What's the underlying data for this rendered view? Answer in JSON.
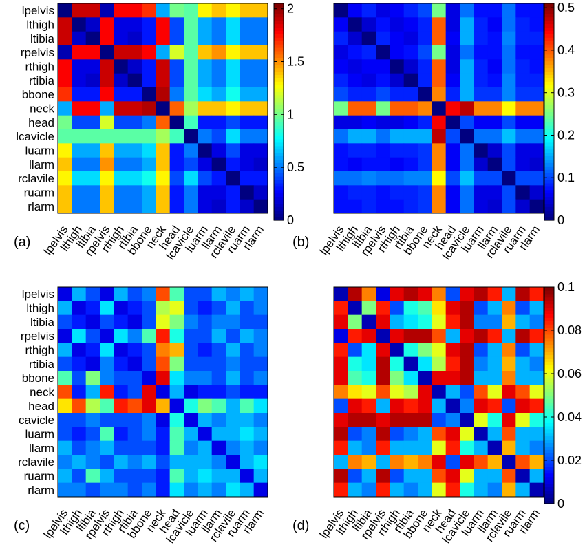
{
  "colormap": "jet",
  "chart_data": [
    {
      "type": "heatmap",
      "panel_label": "(a)",
      "row_labels": [
        "lpelvis",
        "lthigh",
        "ltibia",
        "rpelvis",
        "rthigh",
        "rtibia",
        "bbone",
        "neck",
        "head",
        "lcavicle",
        "luarm",
        "llarm",
        "rclavile",
        "ruarm",
        "rlarm"
      ],
      "col_labels": [
        "lpelvis",
        "lthigh",
        "ltibia",
        "rpelvis",
        "rthigh",
        "rtibia",
        "bbone",
        "neck",
        "head",
        "lcavicle",
        "luarm",
        "llarm",
        "rclavile",
        "ruarm",
        "rlarm"
      ],
      "colorbar": {
        "min": 0,
        "max": 2.05,
        "ticks": [
          0,
          0.5,
          1,
          1.5,
          2
        ],
        "tick_labels": [
          "0",
          "0.5",
          "1",
          "1.5",
          "2"
        ]
      },
      "values": [
        [
          0.0,
          1.9,
          1.9,
          0.1,
          1.8,
          1.8,
          1.7,
          0.6,
          1.0,
          0.95,
          1.3,
          1.4,
          1.3,
          1.4,
          1.4
        ],
        [
          1.9,
          0.0,
          0.15,
          1.8,
          0.2,
          0.2,
          0.3,
          1.8,
          0.4,
          0.95,
          0.6,
          0.5,
          0.7,
          0.5,
          0.5
        ],
        [
          1.9,
          0.15,
          0.0,
          1.8,
          0.2,
          0.15,
          0.3,
          1.8,
          0.4,
          0.95,
          0.6,
          0.5,
          0.7,
          0.5,
          0.5
        ],
        [
          0.1,
          1.8,
          1.8,
          0.0,
          1.9,
          1.9,
          1.8,
          0.6,
          1.2,
          0.95,
          1.4,
          1.5,
          1.3,
          1.4,
          1.4
        ],
        [
          1.8,
          0.2,
          0.2,
          1.9,
          0.0,
          0.15,
          0.3,
          1.9,
          0.4,
          0.95,
          0.6,
          0.5,
          0.7,
          0.5,
          0.5
        ],
        [
          1.8,
          0.2,
          0.15,
          1.9,
          0.15,
          0.0,
          0.3,
          1.9,
          0.4,
          0.95,
          0.6,
          0.5,
          0.7,
          0.5,
          0.5
        ],
        [
          1.7,
          0.3,
          0.3,
          1.8,
          0.3,
          0.3,
          0.0,
          1.95,
          0.5,
          0.95,
          0.7,
          0.6,
          0.8,
          0.6,
          0.6
        ],
        [
          0.6,
          1.8,
          1.8,
          0.6,
          1.9,
          1.9,
          1.95,
          0.0,
          1.6,
          1.1,
          1.4,
          1.4,
          1.3,
          1.4,
          1.4
        ],
        [
          1.0,
          0.4,
          0.4,
          1.2,
          0.4,
          0.4,
          0.5,
          1.6,
          0.0,
          0.9,
          0.3,
          0.3,
          0.4,
          0.3,
          0.3
        ],
        [
          0.95,
          0.95,
          0.95,
          0.95,
          0.95,
          0.95,
          0.95,
          1.1,
          0.9,
          0.0,
          0.5,
          0.4,
          0.7,
          0.5,
          0.5
        ],
        [
          1.3,
          0.6,
          0.6,
          1.4,
          0.6,
          0.6,
          0.7,
          1.4,
          0.3,
          0.5,
          0.0,
          0.2,
          0.4,
          0.2,
          0.2
        ],
        [
          1.4,
          0.5,
          0.5,
          1.5,
          0.5,
          0.5,
          0.6,
          1.4,
          0.3,
          0.4,
          0.2,
          0.0,
          0.3,
          0.2,
          0.15
        ],
        [
          1.3,
          0.7,
          0.7,
          1.3,
          0.7,
          0.7,
          0.8,
          1.3,
          0.4,
          0.7,
          0.4,
          0.3,
          0.0,
          0.3,
          0.3
        ],
        [
          1.4,
          0.5,
          0.5,
          1.4,
          0.5,
          0.5,
          0.6,
          1.4,
          0.3,
          0.5,
          0.2,
          0.2,
          0.3,
          0.0,
          0.15
        ],
        [
          1.4,
          0.5,
          0.5,
          1.4,
          0.5,
          0.5,
          0.6,
          1.4,
          0.3,
          0.5,
          0.2,
          0.15,
          0.3,
          0.15,
          0.0
        ]
      ]
    },
    {
      "type": "heatmap",
      "panel_label": "(b)",
      "row_labels": [],
      "col_labels": [
        "lpelvis",
        "lthigh",
        "ltibia",
        "rpelvis",
        "rthigh",
        "rtibia",
        "bbone",
        "neck",
        "head",
        "lcavicle",
        "luarm",
        "llarm",
        "rclavile",
        "ruarm",
        "rlarm"
      ],
      "colorbar": {
        "min": 0,
        "max": 0.51,
        "ticks": [
          0,
          0.1,
          0.2,
          0.3,
          0.4,
          0.5
        ],
        "tick_labels": [
          "0",
          "0.1",
          "0.2",
          "0.3",
          "0.4",
          "0.5"
        ]
      },
      "values": [
        [
          0.0,
          0.06,
          0.08,
          0.05,
          0.06,
          0.08,
          0.1,
          0.25,
          0.05,
          0.12,
          0.07,
          0.07,
          0.12,
          0.07,
          0.07
        ],
        [
          0.06,
          0.0,
          0.04,
          0.07,
          0.05,
          0.06,
          0.08,
          0.4,
          0.05,
          0.15,
          0.08,
          0.06,
          0.12,
          0.08,
          0.07
        ],
        [
          0.08,
          0.04,
          0.0,
          0.08,
          0.06,
          0.05,
          0.08,
          0.4,
          0.06,
          0.15,
          0.08,
          0.07,
          0.13,
          0.08,
          0.08
        ],
        [
          0.05,
          0.07,
          0.08,
          0.0,
          0.06,
          0.07,
          0.1,
          0.25,
          0.05,
          0.12,
          0.07,
          0.07,
          0.12,
          0.07,
          0.07
        ],
        [
          0.06,
          0.05,
          0.06,
          0.06,
          0.0,
          0.04,
          0.08,
          0.4,
          0.05,
          0.15,
          0.08,
          0.06,
          0.12,
          0.08,
          0.07
        ],
        [
          0.08,
          0.06,
          0.05,
          0.07,
          0.04,
          0.0,
          0.08,
          0.4,
          0.06,
          0.15,
          0.08,
          0.07,
          0.13,
          0.08,
          0.08
        ],
        [
          0.1,
          0.08,
          0.08,
          0.1,
          0.08,
          0.08,
          0.0,
          0.38,
          0.08,
          0.15,
          0.09,
          0.09,
          0.13,
          0.09,
          0.09
        ],
        [
          0.25,
          0.4,
          0.4,
          0.25,
          0.4,
          0.4,
          0.38,
          0.0,
          0.45,
          0.48,
          0.38,
          0.38,
          0.32,
          0.38,
          0.38
        ],
        [
          0.05,
          0.05,
          0.06,
          0.05,
          0.05,
          0.06,
          0.08,
          0.45,
          0.0,
          0.1,
          0.06,
          0.06,
          0.1,
          0.06,
          0.06
        ],
        [
          0.12,
          0.15,
          0.15,
          0.12,
          0.15,
          0.15,
          0.15,
          0.48,
          0.1,
          0.0,
          0.12,
          0.12,
          0.16,
          0.12,
          0.12
        ],
        [
          0.07,
          0.08,
          0.08,
          0.07,
          0.08,
          0.08,
          0.09,
          0.38,
          0.06,
          0.12,
          0.0,
          0.04,
          0.1,
          0.05,
          0.05
        ],
        [
          0.07,
          0.06,
          0.07,
          0.07,
          0.06,
          0.07,
          0.09,
          0.38,
          0.06,
          0.12,
          0.04,
          0.0,
          0.1,
          0.05,
          0.04
        ],
        [
          0.12,
          0.12,
          0.13,
          0.12,
          0.12,
          0.13,
          0.13,
          0.32,
          0.1,
          0.16,
          0.1,
          0.1,
          0.0,
          0.1,
          0.1
        ],
        [
          0.07,
          0.08,
          0.08,
          0.07,
          0.08,
          0.08,
          0.09,
          0.38,
          0.06,
          0.12,
          0.05,
          0.05,
          0.1,
          0.0,
          0.04
        ],
        [
          0.07,
          0.07,
          0.08,
          0.07,
          0.07,
          0.08,
          0.09,
          0.38,
          0.06,
          0.12,
          0.05,
          0.04,
          0.1,
          0.04,
          0.0
        ]
      ]
    },
    {
      "type": "heatmap",
      "panel_label": "(c)",
      "row_labels": [
        "lpelvis",
        "lthigh",
        "ltibia",
        "rpelvis",
        "rthigh",
        "rtibia",
        "bbone",
        "neck",
        "head",
        "cavicle",
        "luarm",
        "llarm",
        "rclavile",
        "ruarm",
        "rlarm"
      ],
      "col_labels": [
        "lpelvis",
        "lthigh",
        "ltibia",
        "rpelvis",
        "rthigh",
        "rtibia",
        "bbone",
        "neck",
        "head",
        "lcavicle",
        "luarm",
        "llarm",
        "rclavile",
        "ruarm",
        "rlarm"
      ],
      "colorbar": null,
      "value_range": [
        0,
        1
      ],
      "values": [
        [
          0.1,
          0.3,
          0.2,
          0.1,
          0.3,
          0.2,
          0.25,
          0.8,
          0.45,
          0.2,
          0.2,
          0.3,
          0.25,
          0.3,
          0.25
        ],
        [
          0.3,
          0.1,
          0.15,
          0.35,
          0.1,
          0.15,
          0.2,
          0.55,
          0.6,
          0.2,
          0.15,
          0.2,
          0.3,
          0.2,
          0.25
        ],
        [
          0.2,
          0.15,
          0.1,
          0.2,
          0.15,
          0.1,
          0.2,
          0.6,
          0.5,
          0.25,
          0.2,
          0.25,
          0.25,
          0.2,
          0.2
        ],
        [
          0.1,
          0.35,
          0.2,
          0.1,
          0.35,
          0.25,
          0.45,
          0.85,
          0.4,
          0.2,
          0.2,
          0.3,
          0.2,
          0.3,
          0.25
        ],
        [
          0.3,
          0.1,
          0.15,
          0.35,
          0.1,
          0.15,
          0.2,
          0.75,
          0.7,
          0.2,
          0.15,
          0.2,
          0.3,
          0.2,
          0.25
        ],
        [
          0.2,
          0.15,
          0.1,
          0.25,
          0.15,
          0.1,
          0.2,
          0.8,
          0.5,
          0.2,
          0.2,
          0.2,
          0.25,
          0.2,
          0.2
        ],
        [
          0.45,
          0.2,
          0.5,
          0.25,
          0.2,
          0.2,
          0.1,
          0.9,
          0.35,
          0.25,
          0.25,
          0.2,
          0.3,
          0.2,
          0.25
        ],
        [
          0.8,
          0.15,
          0.3,
          0.85,
          0.15,
          0.2,
          0.9,
          0.1,
          0.3,
          0.1,
          0.15,
          0.15,
          0.2,
          0.15,
          0.15
        ],
        [
          0.65,
          0.8,
          0.55,
          0.45,
          0.85,
          0.8,
          0.9,
          0.7,
          0.1,
          0.4,
          0.5,
          0.45,
          0.3,
          0.45,
          0.35
        ],
        [
          0.2,
          0.2,
          0.25,
          0.2,
          0.2,
          0.2,
          0.25,
          0.1,
          0.4,
          0.1,
          0.3,
          0.25,
          0.3,
          0.3,
          0.25
        ],
        [
          0.2,
          0.15,
          0.2,
          0.45,
          0.15,
          0.2,
          0.25,
          0.15,
          0.45,
          0.3,
          0.1,
          0.3,
          0.3,
          0.35,
          0.3
        ],
        [
          0.3,
          0.2,
          0.25,
          0.3,
          0.2,
          0.2,
          0.2,
          0.15,
          0.45,
          0.25,
          0.3,
          0.1,
          0.25,
          0.3,
          0.25
        ],
        [
          0.25,
          0.3,
          0.25,
          0.2,
          0.3,
          0.25,
          0.3,
          0.2,
          0.3,
          0.3,
          0.3,
          0.25,
          0.1,
          0.3,
          0.35
        ],
        [
          0.3,
          0.2,
          0.45,
          0.3,
          0.2,
          0.2,
          0.2,
          0.15,
          0.45,
          0.3,
          0.35,
          0.3,
          0.3,
          0.1,
          0.3
        ],
        [
          0.25,
          0.25,
          0.2,
          0.25,
          0.25,
          0.2,
          0.25,
          0.15,
          0.35,
          0.25,
          0.3,
          0.25,
          0.35,
          0.3,
          0.1
        ]
      ]
    },
    {
      "type": "heatmap",
      "panel_label": "(d)",
      "row_labels": [],
      "col_labels": [
        "lpelvis",
        "lthigh",
        "ltibia",
        "rpelvis",
        "rthigh",
        "rtibia",
        "bbone",
        "neck",
        "head",
        "lcavicle",
        "luarm",
        "llarm",
        "rclavile",
        "ruarm",
        "rlarm"
      ],
      "colorbar": {
        "min": 0,
        "max": 0.1,
        "ticks": [
          0,
          0.02,
          0.04,
          0.06,
          0.08,
          0.1
        ],
        "tick_labels": [
          "0",
          "0.02",
          "0.04",
          "0.06",
          "0.08",
          "0.1"
        ]
      },
      "values": [
        [
          0.005,
          0.095,
          0.075,
          0.01,
          0.09,
          0.095,
          0.09,
          0.075,
          0.02,
          0.09,
          0.095,
          0.085,
          0.03,
          0.095,
          0.085
        ],
        [
          0.085,
          0.005,
          0.05,
          0.085,
          0.02,
          0.04,
          0.045,
          0.065,
          0.09,
          0.095,
          0.02,
          0.03,
          0.075,
          0.02,
          0.03
        ],
        [
          0.09,
          0.05,
          0.005,
          0.09,
          0.03,
          0.035,
          0.04,
          0.06,
          0.085,
          0.095,
          0.025,
          0.025,
          0.07,
          0.03,
          0.025
        ],
        [
          0.01,
          0.085,
          0.09,
          0.005,
          0.09,
          0.095,
          0.095,
          0.08,
          0.03,
          0.09,
          0.095,
          0.085,
          0.03,
          0.095,
          0.085
        ],
        [
          0.085,
          0.02,
          0.035,
          0.09,
          0.005,
          0.04,
          0.05,
          0.06,
          0.09,
          0.095,
          0.02,
          0.03,
          0.075,
          0.02,
          0.03
        ],
        [
          0.09,
          0.04,
          0.035,
          0.095,
          0.04,
          0.005,
          0.035,
          0.055,
          0.085,
          0.095,
          0.025,
          0.03,
          0.07,
          0.03,
          0.025
        ],
        [
          0.09,
          0.045,
          0.04,
          0.095,
          0.05,
          0.035,
          0.005,
          0.09,
          0.09,
          0.095,
          0.03,
          0.03,
          0.075,
          0.03,
          0.03
        ],
        [
          0.075,
          0.065,
          0.06,
          0.08,
          0.06,
          0.055,
          0.09,
          0.005,
          0.03,
          0.02,
          0.08,
          0.06,
          0.09,
          0.08,
          0.06
        ],
        [
          0.02,
          0.09,
          0.085,
          0.03,
          0.09,
          0.085,
          0.09,
          0.03,
          0.005,
          0.025,
          0.09,
          0.085,
          0.02,
          0.09,
          0.085
        ],
        [
          0.09,
          0.095,
          0.095,
          0.09,
          0.095,
          0.095,
          0.095,
          0.02,
          0.025,
          0.005,
          0.06,
          0.04,
          0.09,
          0.06,
          0.04
        ],
        [
          0.095,
          0.02,
          0.025,
          0.095,
          0.02,
          0.025,
          0.03,
          0.08,
          0.09,
          0.06,
          0.005,
          0.03,
          0.08,
          0.03,
          0.03
        ],
        [
          0.085,
          0.03,
          0.025,
          0.085,
          0.03,
          0.03,
          0.03,
          0.06,
          0.085,
          0.04,
          0.03,
          0.005,
          0.07,
          0.03,
          0.025
        ],
        [
          0.03,
          0.075,
          0.07,
          0.03,
          0.075,
          0.07,
          0.075,
          0.09,
          0.02,
          0.09,
          0.08,
          0.07,
          0.005,
          0.08,
          0.07
        ],
        [
          0.095,
          0.02,
          0.03,
          0.095,
          0.02,
          0.03,
          0.03,
          0.08,
          0.09,
          0.06,
          0.03,
          0.03,
          0.08,
          0.005,
          0.03
        ],
        [
          0.085,
          0.03,
          0.025,
          0.085,
          0.03,
          0.025,
          0.03,
          0.06,
          0.085,
          0.04,
          0.03,
          0.025,
          0.07,
          0.03,
          0.005
        ]
      ]
    }
  ]
}
